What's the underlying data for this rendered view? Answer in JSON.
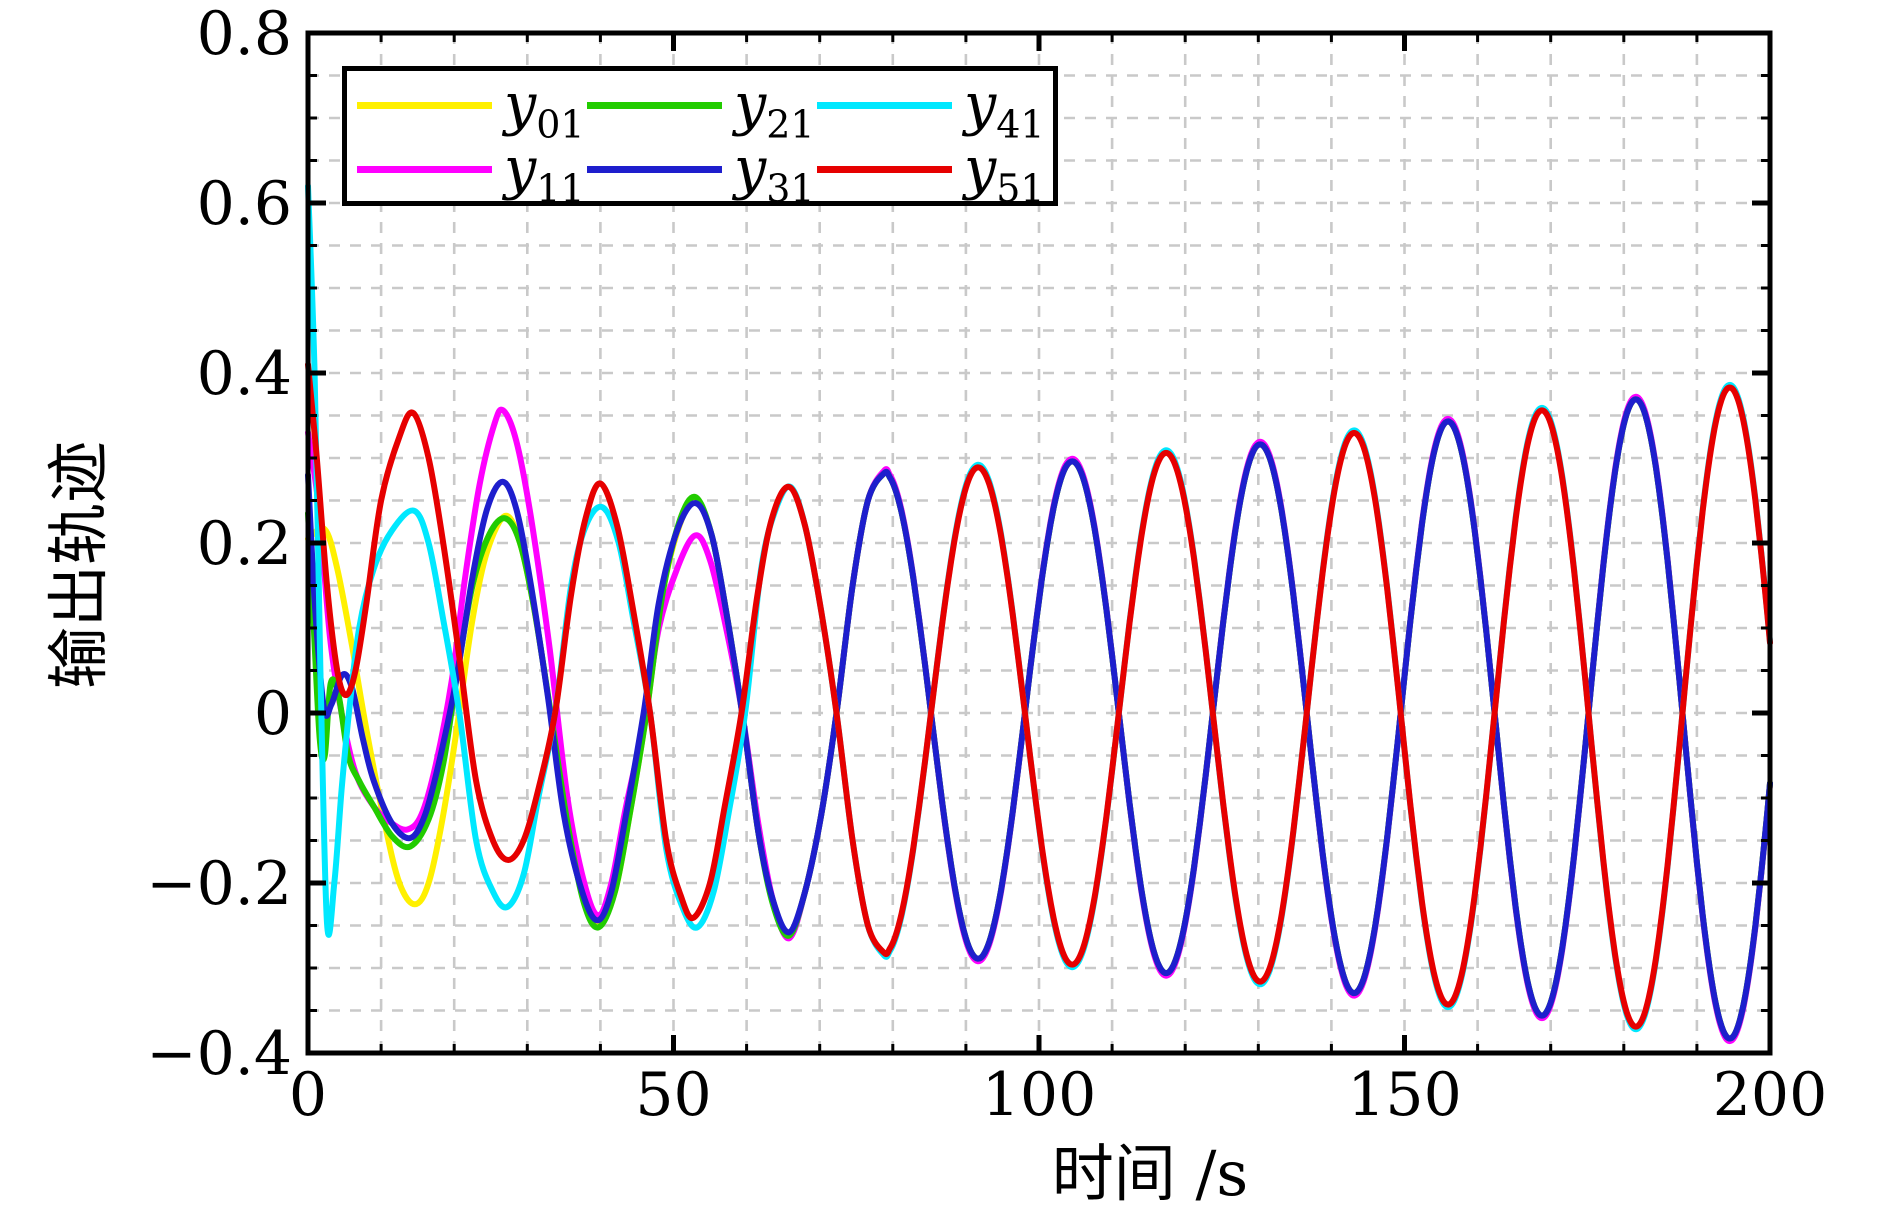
{
  "chart_data": {
    "type": "line",
    "title": "",
    "xlabel": "时间 /s",
    "ylabel": "输出轨迹",
    "xlim": [
      0,
      200
    ],
    "ylim": [
      -0.4,
      0.8
    ],
    "x_major_ticks": [
      0,
      50,
      100,
      150,
      200
    ],
    "x_tick_labels": [
      "0",
      "50",
      "100",
      "150",
      "200"
    ],
    "y_major_ticks": [
      0.8,
      0.6,
      0.4,
      0.2,
      0,
      -0.2,
      -0.4
    ],
    "y_tick_labels": [
      "0.8",
      "0.6",
      "0.4",
      "0.2",
      "0",
      "−0.2",
      "−0.4"
    ],
    "x_minor_step": 10,
    "y_minor_step": 0.05,
    "grid": "on",
    "grid_color": "#c9c9c9",
    "frame_color": "#000000",
    "background_color": "#ffffff",
    "legend_position": "upper-left",
    "legend_display_order": [
      0,
      2,
      4,
      1,
      3,
      5
    ],
    "steady_state": {
      "t_start": 78.8,
      "t_peak_ref": 78.8,
      "period_s": 25.7,
      "amp_curve": [
        [
          78.8,
          0.282
        ],
        [
          104.5,
          0.296
        ],
        [
          130.2,
          0.316
        ],
        [
          155.9,
          0.343
        ],
        [
          181.6,
          0.369
        ],
        [
          200,
          0.389
        ]
      ]
    },
    "series": [
      {
        "name": "y01",
        "label_main": "y",
        "label_sub": "01",
        "color": "#fff000",
        "phase": "sync",
        "amp_offset": 0,
        "transient_points": [
          [
            0,
            0.205
          ],
          [
            2.3,
            0.216
          ],
          [
            4,
            0.17
          ],
          [
            6,
            0.08
          ],
          [
            8,
            -0.02
          ],
          [
            10.5,
            -0.13
          ],
          [
            12.5,
            -0.2
          ],
          [
            14.6,
            -0.225
          ],
          [
            16.5,
            -0.2
          ],
          [
            18.5,
            -0.12
          ],
          [
            20.5,
            -0.01
          ],
          [
            22.5,
            0.11
          ],
          [
            24.5,
            0.19
          ],
          [
            27,
            0.232
          ],
          [
            29,
            0.2
          ],
          [
            31,
            0.12
          ],
          [
            33.2,
            0
          ],
          [
            35.5,
            -0.13
          ],
          [
            37.8,
            -0.22
          ],
          [
            39.8,
            -0.248
          ],
          [
            42,
            -0.21
          ],
          [
            44,
            -0.12
          ],
          [
            46.3,
            0
          ],
          [
            48.5,
            0.14
          ],
          [
            50.8,
            0.22
          ],
          [
            53,
            0.25
          ],
          [
            55.2,
            0.21
          ],
          [
            57.2,
            0.12
          ],
          [
            59.4,
            0
          ],
          [
            61.6,
            -0.14
          ],
          [
            63.6,
            -0.22
          ],
          [
            65.8,
            -0.26
          ],
          [
            68,
            -0.21
          ],
          [
            70.2,
            -0.12
          ],
          [
            72.3,
            0
          ],
          [
            74.5,
            0.15
          ],
          [
            76.6,
            0.25
          ],
          [
            78.8,
            0.282
          ]
        ]
      },
      {
        "name": "y11",
        "label_main": "y",
        "label_sub": "11",
        "color": "#ff00ff",
        "phase": "sync",
        "amp_offset": 0.003,
        "transient_points": [
          [
            0,
            0.33
          ],
          [
            1.5,
            0.24
          ],
          [
            3,
            0.09
          ],
          [
            4.6,
            0
          ],
          [
            6.5,
            -0.07
          ],
          [
            9,
            -0.11
          ],
          [
            11.5,
            -0.13
          ],
          [
            13.6,
            -0.137
          ],
          [
            15.5,
            -0.12
          ],
          [
            17.5,
            -0.06
          ],
          [
            19.7,
            0.04
          ],
          [
            21.5,
            0.16
          ],
          [
            23.5,
            0.27
          ],
          [
            25.5,
            0.34
          ],
          [
            26.7,
            0.356
          ],
          [
            28.5,
            0.32
          ],
          [
            30.5,
            0.23
          ],
          [
            33,
            0.08
          ],
          [
            35.5,
            -0.1
          ],
          [
            37.8,
            -0.2
          ],
          [
            39.7,
            -0.238
          ],
          [
            41.5,
            -0.2
          ],
          [
            43.5,
            -0.11
          ],
          [
            46,
            -0.01
          ],
          [
            48,
            0.1
          ],
          [
            50.5,
            0.17
          ],
          [
            53,
            0.209
          ],
          [
            55,
            0.18
          ],
          [
            57.2,
            0.1
          ],
          [
            59.4,
            0
          ],
          [
            61.6,
            -0.13
          ],
          [
            63.6,
            -0.22
          ],
          [
            65.8,
            -0.265
          ],
          [
            68,
            -0.21
          ],
          [
            70.2,
            -0.12
          ],
          [
            72.3,
            0
          ],
          [
            74.5,
            0.15
          ],
          [
            76.6,
            0.25
          ],
          [
            78.8,
            0.285
          ]
        ]
      },
      {
        "name": "y21",
        "label_main": "y",
        "label_sub": "21",
        "color": "#22cc00",
        "phase": "sync",
        "amp_offset": 0,
        "transient_points": [
          [
            0,
            0.235
          ],
          [
            0.8,
            0.1
          ],
          [
            1.6,
            -0.03
          ],
          [
            2.3,
            -0.05
          ],
          [
            3.1,
            0.035
          ],
          [
            4.2,
            0.02
          ],
          [
            5.5,
            -0.05
          ],
          [
            7,
            -0.08
          ],
          [
            9,
            -0.11
          ],
          [
            11.5,
            -0.145
          ],
          [
            14,
            -0.157
          ],
          [
            16.5,
            -0.125
          ],
          [
            18.5,
            -0.06
          ],
          [
            20.3,
            0.04
          ],
          [
            22.5,
            0.15
          ],
          [
            24.8,
            0.21
          ],
          [
            27,
            0.229
          ],
          [
            29,
            0.2
          ],
          [
            31,
            0.12
          ],
          [
            33.2,
            0
          ],
          [
            35.5,
            -0.13
          ],
          [
            37.8,
            -0.225
          ],
          [
            39.8,
            -0.252
          ],
          [
            42,
            -0.21
          ],
          [
            44,
            -0.12
          ],
          [
            46.3,
            0
          ],
          [
            48.5,
            0.14
          ],
          [
            50.8,
            0.225
          ],
          [
            53,
            0.254
          ],
          [
            55.2,
            0.21
          ],
          [
            57.2,
            0.12
          ],
          [
            59.4,
            0
          ],
          [
            61.6,
            -0.14
          ],
          [
            63.6,
            -0.225
          ],
          [
            65.8,
            -0.262
          ],
          [
            68,
            -0.21
          ],
          [
            70.2,
            -0.12
          ],
          [
            72.3,
            0
          ],
          [
            74.5,
            0.15
          ],
          [
            76.6,
            0.25
          ],
          [
            78.8,
            0.282
          ]
        ]
      },
      {
        "name": "y31",
        "label_main": "y",
        "label_sub": "31",
        "color": "#1e1ecd",
        "phase": "sync",
        "amp_offset": 0,
        "transient_points": [
          [
            0,
            0.28
          ],
          [
            1,
            0.12
          ],
          [
            2.2,
            0.005
          ],
          [
            3.2,
            0.01
          ],
          [
            4.7,
            0.045
          ],
          [
            6,
            0.03
          ],
          [
            7.5,
            -0.03
          ],
          [
            9,
            -0.08
          ],
          [
            11.5,
            -0.13
          ],
          [
            14,
            -0.147
          ],
          [
            16,
            -0.12
          ],
          [
            18,
            -0.055
          ],
          [
            20.3,
            0.04
          ],
          [
            22.5,
            0.16
          ],
          [
            24.5,
            0.24
          ],
          [
            26.6,
            0.272
          ],
          [
            28.5,
            0.24
          ],
          [
            30.5,
            0.15
          ],
          [
            32.8,
            0.02
          ],
          [
            35,
            -0.12
          ],
          [
            37.5,
            -0.21
          ],
          [
            39.6,
            -0.244
          ],
          [
            41.5,
            -0.21
          ],
          [
            43.5,
            -0.12
          ],
          [
            46,
            0.005
          ],
          [
            48,
            0.13
          ],
          [
            50.5,
            0.215
          ],
          [
            53,
            0.247
          ],
          [
            55.2,
            0.21
          ],
          [
            57.2,
            0.12
          ],
          [
            59.4,
            0
          ],
          [
            61.6,
            -0.14
          ],
          [
            63.6,
            -0.22
          ],
          [
            65.8,
            -0.258
          ],
          [
            68,
            -0.21
          ],
          [
            70.2,
            -0.12
          ],
          [
            72.3,
            0
          ],
          [
            74.5,
            0.15
          ],
          [
            76.6,
            0.25
          ],
          [
            78.8,
            0.282
          ]
        ]
      },
      {
        "name": "y41",
        "label_main": "y",
        "label_sub": "41",
        "color": "#00e8ff",
        "phase": "anti",
        "amp_offset": 0.003,
        "transient_points": [
          [
            0,
            0.62
          ],
          [
            0.9,
            0.4
          ],
          [
            1.7,
            0.05
          ],
          [
            2.6,
            -0.247
          ],
          [
            3.6,
            -0.2
          ],
          [
            4.6,
            -0.09
          ],
          [
            5.6,
            0
          ],
          [
            7,
            0.1
          ],
          [
            9,
            0.17
          ],
          [
            11.5,
            0.215
          ],
          [
            14.5,
            0.238
          ],
          [
            16.5,
            0.2
          ],
          [
            18.5,
            0.11
          ],
          [
            20.7,
            0
          ],
          [
            23,
            -0.15
          ],
          [
            25.3,
            -0.21
          ],
          [
            27.3,
            -0.228
          ],
          [
            29.5,
            -0.19
          ],
          [
            31.5,
            -0.1
          ],
          [
            33.8,
            0
          ],
          [
            36,
            0.15
          ],
          [
            38,
            0.22
          ],
          [
            40.3,
            0.242
          ],
          [
            42.5,
            0.2
          ],
          [
            44.5,
            0.11
          ],
          [
            46.8,
            0
          ],
          [
            49,
            -0.16
          ],
          [
            51.3,
            -0.23
          ],
          [
            53.3,
            -0.252
          ],
          [
            55.5,
            -0.21
          ],
          [
            57.5,
            -0.12
          ],
          [
            59.8,
            0
          ],
          [
            62,
            0.17
          ],
          [
            64,
            0.24
          ],
          [
            66,
            0.266
          ],
          [
            68,
            0.22
          ],
          [
            70.2,
            0.12
          ],
          [
            72.3,
            0
          ],
          [
            74.5,
            -0.15
          ],
          [
            76.6,
            -0.25
          ],
          [
            78.8,
            -0.285
          ]
        ]
      },
      {
        "name": "y51",
        "label_main": "y",
        "label_sub": "51",
        "color": "#e60000",
        "phase": "anti",
        "amp_offset": 0,
        "transient_points": [
          [
            0,
            0.41
          ],
          [
            1.2,
            0.3
          ],
          [
            2.6,
            0.15
          ],
          [
            4,
            0.05
          ],
          [
            5.2,
            0.021
          ],
          [
            6.5,
            0.05
          ],
          [
            8,
            0.13
          ],
          [
            10,
            0.25
          ],
          [
            12.5,
            0.325
          ],
          [
            14.4,
            0.353
          ],
          [
            16.5,
            0.3
          ],
          [
            18.5,
            0.2
          ],
          [
            20.8,
            0.06
          ],
          [
            23,
            -0.08
          ],
          [
            25.3,
            -0.15
          ],
          [
            27.4,
            -0.173
          ],
          [
            29.5,
            -0.15
          ],
          [
            31.5,
            -0.09
          ],
          [
            33.8,
            0
          ],
          [
            36,
            0.14
          ],
          [
            38,
            0.23
          ],
          [
            40,
            0.27
          ],
          [
            42.3,
            0.22
          ],
          [
            44.5,
            0.12
          ],
          [
            46.8,
            0
          ],
          [
            49,
            -0.15
          ],
          [
            51,
            -0.215
          ],
          [
            52.7,
            -0.241
          ],
          [
            55,
            -0.2
          ],
          [
            57,
            -0.11
          ],
          [
            59.3,
            0
          ],
          [
            61.5,
            0.14
          ],
          [
            63.5,
            0.23
          ],
          [
            65.8,
            0.266
          ],
          [
            68,
            0.22
          ],
          [
            70.2,
            0.12
          ],
          [
            72.3,
            0
          ],
          [
            74.5,
            -0.15
          ],
          [
            76.6,
            -0.25
          ],
          [
            78.8,
            -0.282
          ]
        ]
      }
    ]
  }
}
